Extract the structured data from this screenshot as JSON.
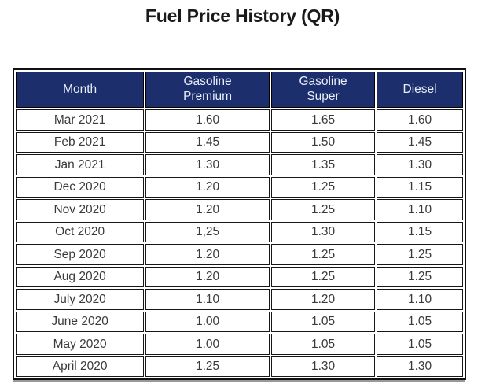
{
  "title": "Fuel Price History (QR)",
  "colors": {
    "header_bg": "#1c2e6b",
    "header_text": "#e9eefb",
    "body_text": "#3a3a3a",
    "border": "#111111",
    "bottom_shadow": "#999999",
    "background": "#ffffff"
  },
  "table": {
    "columns": [
      "Month",
      "Gasoline Premium",
      "Gasoline Super",
      "Diesel"
    ],
    "rows": [
      [
        "Mar 2021",
        "1.60",
        "1.65",
        "1.60"
      ],
      [
        "Feb 2021",
        "1.45",
        "1.50",
        "1.45"
      ],
      [
        "Jan 2021",
        "1.30",
        "1.35",
        "1.30"
      ],
      [
        "Dec 2020",
        "1.20",
        "1.25",
        "1.15"
      ],
      [
        "Nov 2020",
        "1.20",
        "1.25",
        "1.10"
      ],
      [
        "Oct 2020",
        "1,25",
        "1.30",
        "1.15"
      ],
      [
        "Sep 2020",
        "1.20",
        "1.25",
        "1.25"
      ],
      [
        "Aug 2020",
        "1.20",
        "1.25",
        "1.25"
      ],
      [
        "July 2020",
        "1.10",
        "1.20",
        "1.10"
      ],
      [
        "June 2020",
        "1.00",
        "1.05",
        "1.05"
      ],
      [
        "May 2020",
        "1.00",
        "1.05",
        "1.05"
      ],
      [
        "April 2020",
        "1.25",
        "1.30",
        "1.30"
      ]
    ]
  },
  "chart_data": {
    "type": "table",
    "title": "Fuel Price History (QR)",
    "unit": "QR",
    "categories": [
      "Mar 2021",
      "Feb 2021",
      "Jan 2021",
      "Dec 2020",
      "Nov 2020",
      "Oct 2020",
      "Sep 2020",
      "Aug 2020",
      "July 2020",
      "June 2020",
      "May 2020",
      "April 2020"
    ],
    "series": [
      {
        "name": "Gasoline Premium",
        "values": [
          1.6,
          1.45,
          1.3,
          1.2,
          1.2,
          1.25,
          1.2,
          1.2,
          1.1,
          1.0,
          1.0,
          1.25
        ]
      },
      {
        "name": "Gasoline Super",
        "values": [
          1.65,
          1.5,
          1.35,
          1.25,
          1.25,
          1.3,
          1.25,
          1.25,
          1.2,
          1.05,
          1.05,
          1.3
        ]
      },
      {
        "name": "Diesel",
        "values": [
          1.6,
          1.45,
          1.3,
          1.15,
          1.1,
          1.15,
          1.25,
          1.25,
          1.1,
          1.05,
          1.05,
          1.3
        ]
      }
    ]
  }
}
